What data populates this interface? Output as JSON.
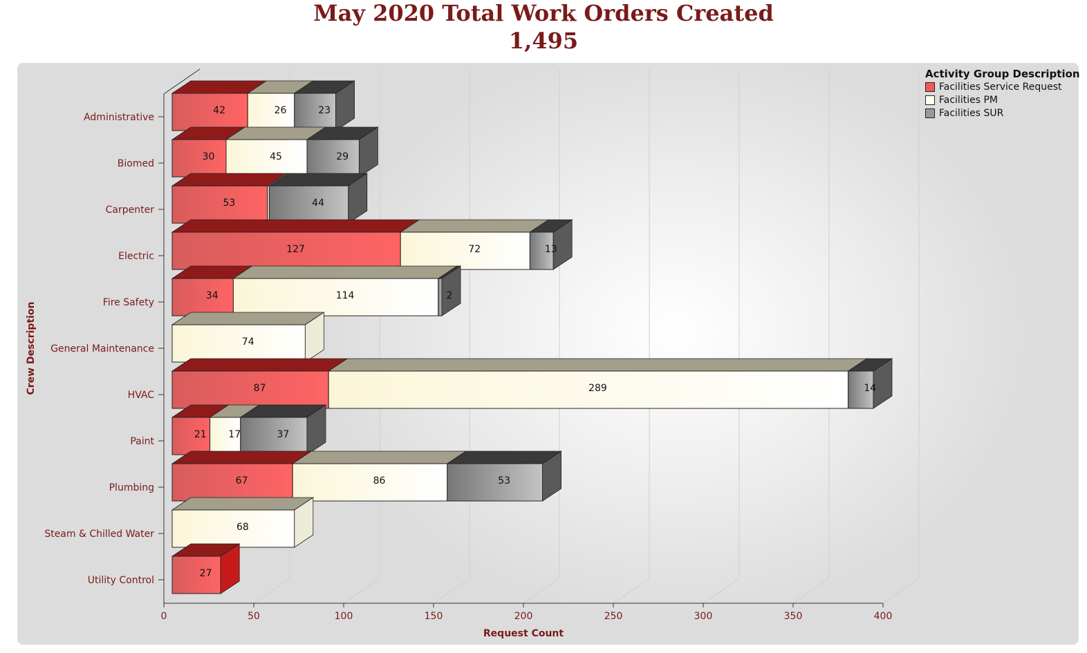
{
  "title": "May 2020 Total Work Orders Created",
  "subtitle": "1,495",
  "legend": {
    "title": "Activity Group Description",
    "items": [
      {
        "label": "Facilities Service Request",
        "color": "#f05a5a"
      },
      {
        "label": "Facilities PM",
        "color": "#fffff0"
      },
      {
        "label": "Facilities SUR",
        "color": "#9a9a9a"
      }
    ]
  },
  "chart_data": {
    "type": "bar",
    "orientation": "horizontal",
    "stacked": true,
    "xlabel": "Request Count",
    "ylabel": "Crew Description",
    "xlim": [
      0,
      400
    ],
    "xticks": [
      0,
      50,
      100,
      150,
      200,
      250,
      300,
      350,
      400
    ],
    "categories": [
      "Administrative",
      "Biomed",
      "Carpenter",
      "Electric",
      "Fire Safety",
      "General Maintenance",
      "HVAC",
      "Paint",
      "Plumbing",
      "Steam & Chilled Water",
      "Utility Control"
    ],
    "series": [
      {
        "name": "Facilities Service Request",
        "color": "#f05a5a",
        "values": [
          42,
          30,
          53,
          127,
          34,
          0,
          87,
          21,
          67,
          0,
          27
        ]
      },
      {
        "name": "Facilities PM",
        "color": "#fffff0",
        "values": [
          26,
          45,
          1,
          72,
          114,
          74,
          289,
          17,
          86,
          68,
          0
        ]
      },
      {
        "name": "Facilities SUR",
        "color": "#9a9a9a",
        "values": [
          23,
          29,
          44,
          13,
          2,
          0,
          14,
          37,
          53,
          0,
          0
        ]
      }
    ],
    "grid": true,
    "legend_position": "top-right"
  }
}
